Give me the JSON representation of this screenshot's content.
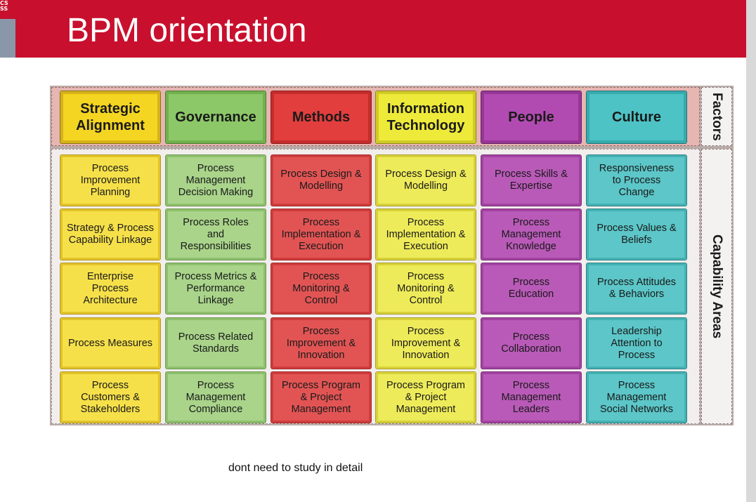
{
  "slide": {
    "title": "BPM orientation",
    "note": "dont need to study in detail",
    "logo_text": "CS\nSS"
  },
  "diagram": {
    "factors_label": "Factors",
    "capability_areas_label": "Capability Areas",
    "factors": [
      "Strategic\nAlignment",
      "Governance",
      "Methods",
      "Information\nTechnology",
      "People",
      "Culture"
    ],
    "capability_rows": [
      [
        "Process\nImprovement\nPlanning",
        "Process\nManagement\nDecision Making",
        "Process Design &\nModelling",
        "Process Design &\nModelling",
        "Process Skills &\nExpertise",
        "Responsiveness\nto Process\nChange"
      ],
      [
        "Strategy & Process\nCapability Linkage",
        "Process Roles\nand\nResponsibilities",
        "Process\nImplementation &\nExecution",
        "Process\nImplementation &\nExecution",
        "Process\nManagement\nKnowledge",
        "Process Values &\nBeliefs"
      ],
      [
        "Enterprise\nProcess\nArchitecture",
        "Process Metrics &\nPerformance\nLinkage",
        "Process\nMonitoring &\nControl",
        "Process\nMonitoring &\nControl",
        "Process\nEducation",
        "Process Attitudes\n& Behaviors"
      ],
      [
        "Process Measures",
        "Process Related\nStandards",
        "Process\nImprovement &\nInnovation",
        "Process\nImprovement &\nInnovation",
        "Process\nCollaboration",
        "Leadership\nAttention to\nProcess"
      ],
      [
        "Process\nCustomers &\nStakeholders",
        "Process\nManagement\nCompliance",
        "Process Program\n& Project\nManagement",
        "Process Program\n& Project\nManagement",
        "Process\nManagement\nLeaders",
        "Process\nManagement\nSocial Networks"
      ]
    ]
  }
}
